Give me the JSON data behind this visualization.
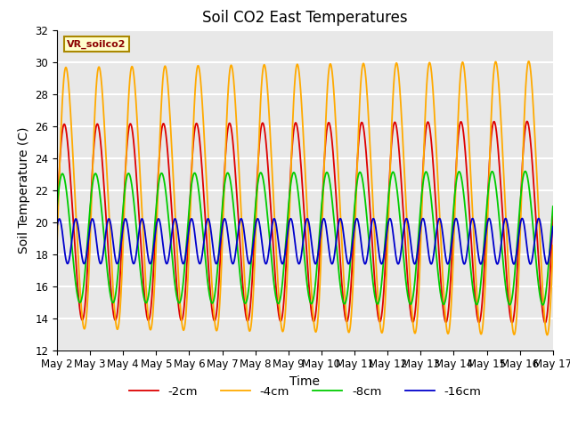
{
  "title": "Soil CO2 East Temperatures",
  "xlabel": "Time",
  "ylabel": "Soil Temperature (C)",
  "ylim": [
    12,
    32
  ],
  "x_tick_labels": [
    "May 2",
    "May 3",
    "May 4",
    "May 5",
    "May 6",
    "May 7",
    "May 8",
    "May 9",
    "May 10",
    "May 11",
    "May 12",
    "May 13",
    "May 14",
    "May 15",
    "May 16",
    "May 17"
  ],
  "sensor_label": "VR_soilco2",
  "colors": {
    "-2cm": "#dd0000",
    "-4cm": "#ffaa00",
    "-8cm": "#00cc00",
    "-16cm": "#0000cc"
  },
  "legend_order": [
    "-2cm",
    "-4cm",
    "-8cm",
    "-16cm"
  ],
  "bg_color": "#e8e8e8",
  "grid_color": "#ffffff",
  "title_fontsize": 12,
  "axis_label_fontsize": 10,
  "tick_fontsize": 8.5,
  "linewidth": 1.3
}
